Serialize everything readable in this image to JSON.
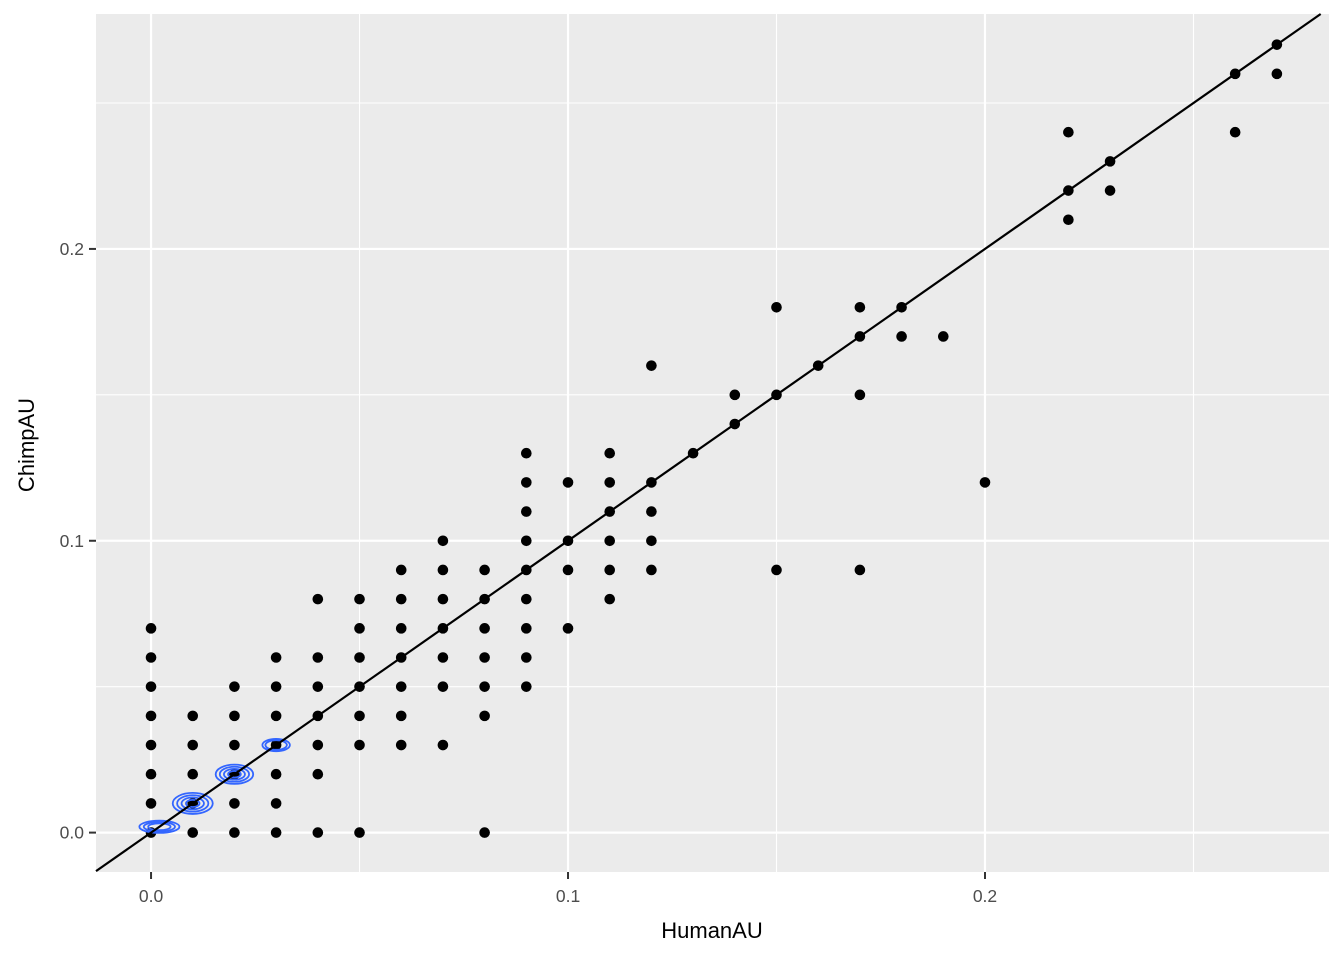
{
  "chart_data": {
    "type": "scatter",
    "title": "",
    "xlabel": "HumanAU",
    "ylabel": "ChimpAU",
    "xlim": [
      -0.0132,
      0.2825
    ],
    "ylim": [
      -0.0135,
      0.2805
    ],
    "x_ticks": [
      0.0,
      0.1,
      0.2
    ],
    "x_tick_labels": [
      "0.0",
      "0.1",
      "0.2"
    ],
    "y_ticks": [
      0.0,
      0.1,
      0.2
    ],
    "y_tick_labels": [
      "0.0",
      "0.1",
      "0.2"
    ],
    "minor_x": [
      0.05,
      0.15,
      0.25
    ],
    "minor_y": [
      0.05,
      0.15,
      0.25
    ],
    "grid": true,
    "legend": "none",
    "colors": {
      "panel": "#ebebeb",
      "grid": "#ffffff",
      "points": "#000000",
      "contour": "#3366ff",
      "reference_line": "#000000",
      "tick_label": "#4d4d4d",
      "tick_mark": "#333333"
    },
    "reference_line": {
      "slope": 1,
      "intercept": 0
    },
    "points": [
      [
        0,
        0
      ],
      [
        0,
        0.01
      ],
      [
        0,
        0.02
      ],
      [
        0,
        0.03
      ],
      [
        0,
        0.04
      ],
      [
        0,
        0.05
      ],
      [
        0,
        0.06
      ],
      [
        0,
        0.07
      ],
      [
        0.01,
        0
      ],
      [
        0.01,
        0.01
      ],
      [
        0.01,
        0.02
      ],
      [
        0.01,
        0.03
      ],
      [
        0.01,
        0.04
      ],
      [
        0.02,
        0
      ],
      [
        0.02,
        0.01
      ],
      [
        0.02,
        0.02
      ],
      [
        0.02,
        0.03
      ],
      [
        0.02,
        0.04
      ],
      [
        0.02,
        0.05
      ],
      [
        0.03,
        0
      ],
      [
        0.03,
        0.01
      ],
      [
        0.03,
        0.02
      ],
      [
        0.03,
        0.03
      ],
      [
        0.03,
        0.04
      ],
      [
        0.03,
        0.05
      ],
      [
        0.03,
        0.06
      ],
      [
        0.04,
        0
      ],
      [
        0.04,
        0.02
      ],
      [
        0.04,
        0.03
      ],
      [
        0.04,
        0.04
      ],
      [
        0.04,
        0.05
      ],
      [
        0.04,
        0.06
      ],
      [
        0.04,
        0.08
      ],
      [
        0.05,
        0
      ],
      [
        0.05,
        0.03
      ],
      [
        0.05,
        0.04
      ],
      [
        0.05,
        0.05
      ],
      [
        0.05,
        0.06
      ],
      [
        0.05,
        0.07
      ],
      [
        0.05,
        0.08
      ],
      [
        0.06,
        0.03
      ],
      [
        0.06,
        0.04
      ],
      [
        0.06,
        0.05
      ],
      [
        0.06,
        0.06
      ],
      [
        0.06,
        0.07
      ],
      [
        0.06,
        0.08
      ],
      [
        0.06,
        0.09
      ],
      [
        0.07,
        0.03
      ],
      [
        0.07,
        0.05
      ],
      [
        0.07,
        0.06
      ],
      [
        0.07,
        0.07
      ],
      [
        0.07,
        0.08
      ],
      [
        0.07,
        0.09
      ],
      [
        0.07,
        0.1
      ],
      [
        0.08,
        0
      ],
      [
        0.08,
        0.04
      ],
      [
        0.08,
        0.05
      ],
      [
        0.08,
        0.06
      ],
      [
        0.08,
        0.07
      ],
      [
        0.08,
        0.08
      ],
      [
        0.08,
        0.09
      ],
      [
        0.09,
        0.05
      ],
      [
        0.09,
        0.06
      ],
      [
        0.09,
        0.07
      ],
      [
        0.09,
        0.08
      ],
      [
        0.09,
        0.09
      ],
      [
        0.09,
        0.1
      ],
      [
        0.09,
        0.11
      ],
      [
        0.09,
        0.12
      ],
      [
        0.09,
        0.13
      ],
      [
        0.1,
        0.07
      ],
      [
        0.1,
        0.09
      ],
      [
        0.1,
        0.1
      ],
      [
        0.1,
        0.12
      ],
      [
        0.11,
        0.08
      ],
      [
        0.11,
        0.09
      ],
      [
        0.11,
        0.1
      ],
      [
        0.11,
        0.11
      ],
      [
        0.11,
        0.12
      ],
      [
        0.11,
        0.13
      ],
      [
        0.12,
        0.09
      ],
      [
        0.12,
        0.1
      ],
      [
        0.12,
        0.11
      ],
      [
        0.12,
        0.12
      ],
      [
        0.12,
        0.16
      ],
      [
        0.13,
        0.13
      ],
      [
        0.14,
        0.14
      ],
      [
        0.14,
        0.15
      ],
      [
        0.15,
        0.09
      ],
      [
        0.15,
        0.15
      ],
      [
        0.15,
        0.18
      ],
      [
        0.16,
        0.16
      ],
      [
        0.17,
        0.09
      ],
      [
        0.17,
        0.15
      ],
      [
        0.17,
        0.17
      ],
      [
        0.17,
        0.18
      ],
      [
        0.18,
        0.17
      ],
      [
        0.18,
        0.18
      ],
      [
        0.19,
        0.17
      ],
      [
        0.2,
        0.12
      ],
      [
        0.22,
        0.21
      ],
      [
        0.22,
        0.22
      ],
      [
        0.22,
        0.24
      ],
      [
        0.23,
        0.22
      ],
      [
        0.23,
        0.23
      ],
      [
        0.26,
        0.24
      ],
      [
        0.26,
        0.26
      ],
      [
        0.27,
        0.26
      ],
      [
        0.27,
        0.27
      ]
    ],
    "density_contours": [
      {
        "center": [
          0.002,
          0.002
        ],
        "rx": 0.0048,
        "ry": 0.0021,
        "levels": 3
      },
      {
        "center": [
          0.01,
          0.01
        ],
        "rx": 0.0048,
        "ry": 0.0036,
        "levels": 4
      },
      {
        "center": [
          0.02,
          0.02
        ],
        "rx": 0.0045,
        "ry": 0.0033,
        "levels": 4
      },
      {
        "center": [
          0.03,
          0.03
        ],
        "rx": 0.0033,
        "ry": 0.0021,
        "levels": 2
      }
    ]
  }
}
